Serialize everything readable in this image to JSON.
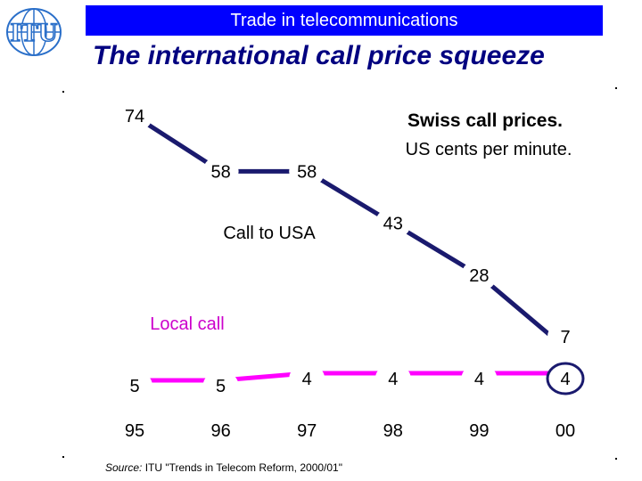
{
  "header": {
    "title": "Trade in telecommunications",
    "logo_text": "ITU"
  },
  "slide": {
    "title": "The international call price squeeze"
  },
  "source": {
    "label": "Source:",
    "text": "ITU \"Trends in Telecom Reform, 2000/01\""
  },
  "colors": {
    "header_bar": "#0000ff",
    "title": "#000080",
    "usa_line": "#1a1a6e",
    "local_line": "#ff00ff",
    "local_label": "#cc00cc"
  },
  "chart_data": {
    "type": "line",
    "title": "Swiss call prices.",
    "subtitle": "US cents per minute.",
    "categories": [
      "95",
      "96",
      "97",
      "98",
      "99",
      "00"
    ],
    "series": [
      {
        "name": "Call to USA",
        "values": [
          74,
          58,
          58,
          43,
          28,
          7
        ]
      },
      {
        "name": "Local call",
        "values": [
          5,
          5,
          4,
          4,
          4,
          4
        ]
      }
    ],
    "data_labels": {
      "usa": [
        "74",
        "58",
        "58",
        "43",
        "28",
        "7"
      ],
      "local": [
        "5",
        "5",
        "4",
        "4",
        "4",
        "4"
      ]
    },
    "xlabel": "",
    "ylabel": "",
    "ylim": [
      0,
      80
    ],
    "grid": false,
    "legend": "inline labels"
  }
}
